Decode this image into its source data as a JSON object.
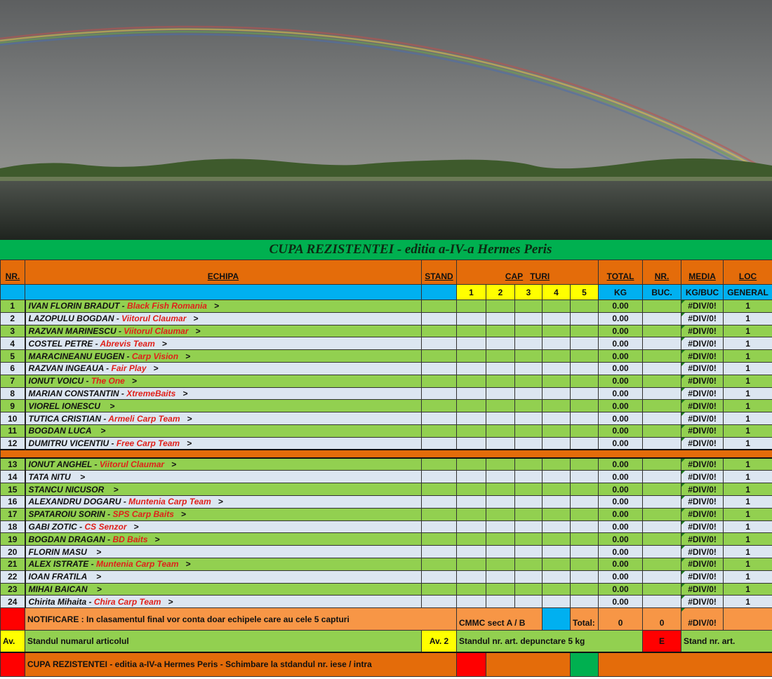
{
  "title": "CUPA REZISTENTEI - editia a-IV-a Hermes Peris",
  "header": {
    "nr": "NR.",
    "echipa": "ECHIPA",
    "stand": "STAND",
    "cap": "CAP",
    "turi": "TURI",
    "total": "TOTAL",
    "nr2": "NR.",
    "media": "MEDIA",
    "loc": "LOC",
    "rounds": [
      "1",
      "2",
      "3",
      "4",
      "5"
    ],
    "kg": "KG",
    "buc": "BUC.",
    "kgbuc": "KG/BUC",
    "general": "GENERAL"
  },
  "rows": [
    {
      "nr": "1",
      "name": "IVAN  FLORIN  BRADUT - ",
      "team": "Black Fish  Romania",
      "total": "0.00",
      "media": "#DIV/0!",
      "loc": "1"
    },
    {
      "nr": "2",
      "name": "LAZOPULU BOGDAN  - ",
      "team": "Viitorul Claumar",
      "total": "0.00",
      "media": "#DIV/0!",
      "loc": "1"
    },
    {
      "nr": "3",
      "name": "RAZVAN  MARINESCU  - ",
      "team": "Viitorul Claumar",
      "total": "0.00",
      "media": "#DIV/0!",
      "loc": "1"
    },
    {
      "nr": "4",
      "name": "COSTEL PETRE  - ",
      "team": "Abrevis Team",
      "total": "0.00",
      "media": "#DIV/0!",
      "loc": "1"
    },
    {
      "nr": "5",
      "name": "MARACINEANU  EUGEN  - ",
      "team": "Carp Vision",
      "total": "0.00",
      "media": "#DIV/0!",
      "loc": "1"
    },
    {
      "nr": "6",
      "name": "RAZVAN  INGEAUA - ",
      "team": "Fair Play",
      "total": "0.00",
      "media": "#DIV/0!",
      "loc": "1"
    },
    {
      "nr": "7",
      "name": "IONUT  VOICU - ",
      "team": "The One",
      "total": "0.00",
      "media": "#DIV/0!",
      "loc": "1"
    },
    {
      "nr": "8",
      "name": "MARIAN  CONSTANTIN  - ",
      "team": "XtremeBaits",
      "total": "0.00",
      "media": "#DIV/0!",
      "loc": "1"
    },
    {
      "nr": "9",
      "name": "VIOREL  IONESCU ",
      "team": "",
      "total": "0.00",
      "media": "#DIV/0!",
      "loc": "1"
    },
    {
      "nr": "10",
      "name": "TUTICA  CRISTIAN - ",
      "team": "Armeli Carp Team",
      "total": "0.00",
      "media": "#DIV/0!",
      "loc": "1"
    },
    {
      "nr": "11",
      "name": "BOGDAN  LUCA ",
      "team": "",
      "total": "0.00",
      "media": "#DIV/0!",
      "loc": "1"
    },
    {
      "nr": "12",
      "name": "DUMITRU  VICENTIU - ",
      "team": "Free Carp Team",
      "total": "0.00",
      "media": "#DIV/0!",
      "loc": "1"
    },
    {
      "nr": "13",
      "name": "IONUT ANGHEL - ",
      "team": "Viitorul Claumar",
      "total": "0.00",
      "media": "#DIV/0!",
      "loc": "1"
    },
    {
      "nr": "14",
      "name": "TATA  NITU ",
      "team": "",
      "total": "0.00",
      "media": "#DIV/0!",
      "loc": "1"
    },
    {
      "nr": "15",
      "name": "STANCU  NICUSOR ",
      "team": "",
      "total": "0.00",
      "media": "#DIV/0!",
      "loc": "1"
    },
    {
      "nr": "16",
      "name": "ALEXANDRU  DOGARU - ",
      "team": "Muntenia Carp Team",
      "total": "0.00",
      "media": "#DIV/0!",
      "loc": "1"
    },
    {
      "nr": "17",
      "name": "SPATAROIU  SORIN - ",
      "team": "SPS Carp Baits",
      "total": "0.00",
      "media": "#DIV/0!",
      "loc": "1"
    },
    {
      "nr": "18",
      "name": "GABI ZOTIC - ",
      "team": "CS Senzor",
      "total": "0.00",
      "media": "#DIV/0!",
      "loc": "1"
    },
    {
      "nr": "19",
      "name": "BOGDAN  DRAGAN - ",
      "team": "BD Baits",
      "total": "0.00",
      "media": "#DIV/0!",
      "loc": "1"
    },
    {
      "nr": "20",
      "name": "FLORIN  MASU ",
      "team": "",
      "total": "0.00",
      "media": "#DIV/0!",
      "loc": "1"
    },
    {
      "nr": "21",
      "name": "ALEX  ISTRATE - ",
      "team": "Muntenia Carp Team",
      "total": "0.00",
      "media": "#DIV/0!",
      "loc": "1"
    },
    {
      "nr": "22",
      "name": "IOAN  FRATILA  ",
      "team": "",
      "total": "0.00",
      "media": "#DIV/0!",
      "loc": "1"
    },
    {
      "nr": "23",
      "name": "MIHAI  BAICAN ",
      "team": "",
      "total": "0.00",
      "media": "#DIV/0!",
      "loc": "1"
    },
    {
      "nr": "24",
      "name": "Chirita Mihaita - ",
      "team": "Chira Carp Team",
      "total": "0.00",
      "media": "#DIV/0!",
      "loc": "1"
    }
  ],
  "arrow": ">",
  "footer": {
    "notificare": "NOTIFICARE :    In clasamentul final vor conta doar echipele care au cele 5 capturi",
    "cmmc": "CMMC sect  A / B",
    "total_label": "Total:",
    "total_kg": "0",
    "total_buc": "0",
    "total_media": "#DIV/0!",
    "av": "Av.",
    "av_text": "Standul numarul               articolul",
    "av2": "Av. 2",
    "av2_text": "Standul  nr.     art.     depunctare 5 kg",
    "e": "E",
    "e_text": "Stand nr.              art.",
    "bottom": "CUPA REZISTENTEI - editia a-IV-a Hermes Peris - Schimbare la stdandul  nr.          iese / intra"
  },
  "colors": {
    "orange": "#e46c0a",
    "green": "#92d050",
    "blue": "#00b0f0",
    "yellow": "#ffff00",
    "red": "#ff0000",
    "title_green": "#00b050"
  }
}
